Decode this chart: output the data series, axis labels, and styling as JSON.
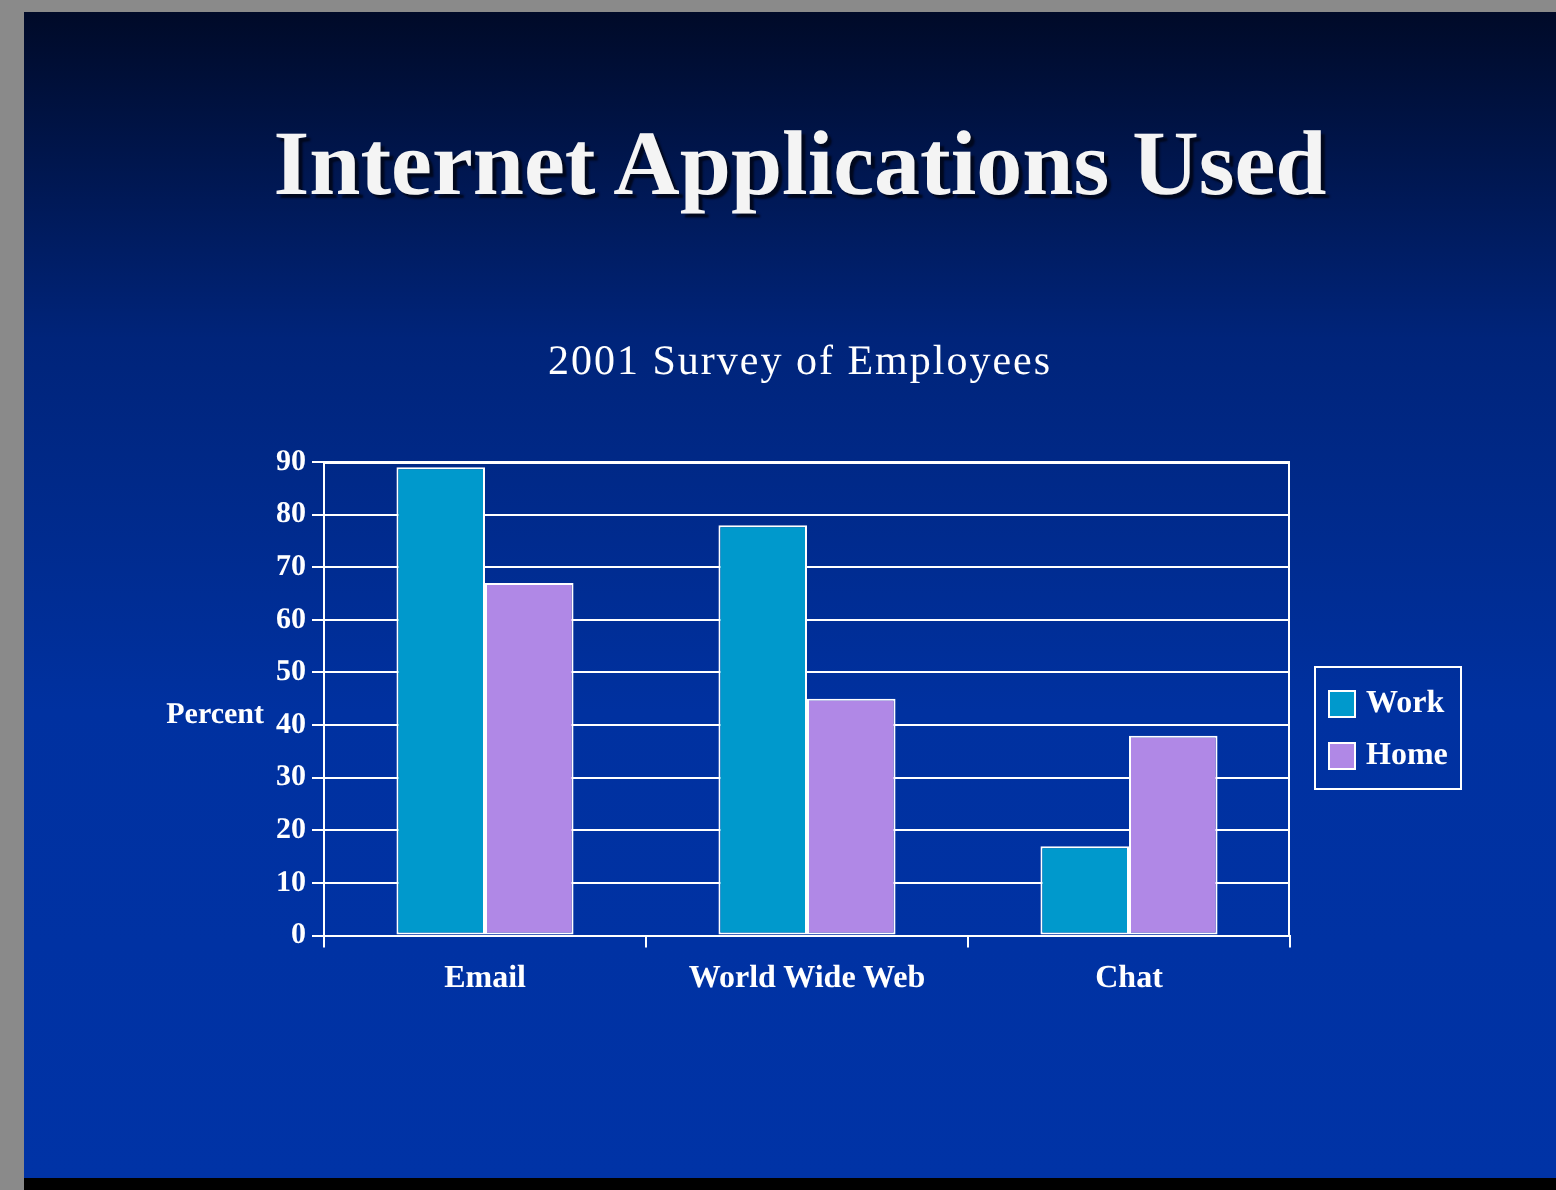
{
  "chart_data": {
    "type": "bar",
    "title": "Internet Applications Used",
    "subtitle": "2001 Survey of Employees",
    "ylabel": "Percent",
    "categories": [
      "Email",
      "World Wide Web",
      "Chat"
    ],
    "series": [
      {
        "name": "Work",
        "color": "#0099cc",
        "values": [
          89,
          78,
          17
        ]
      },
      {
        "name": "Home",
        "color": "#b088e6",
        "values": [
          67,
          45,
          38
        ]
      }
    ],
    "ylim": [
      0,
      90
    ],
    "yticks": [
      0,
      10,
      20,
      30,
      40,
      50,
      60,
      70,
      80,
      90
    ],
    "grid": "y",
    "legend": "right"
  }
}
